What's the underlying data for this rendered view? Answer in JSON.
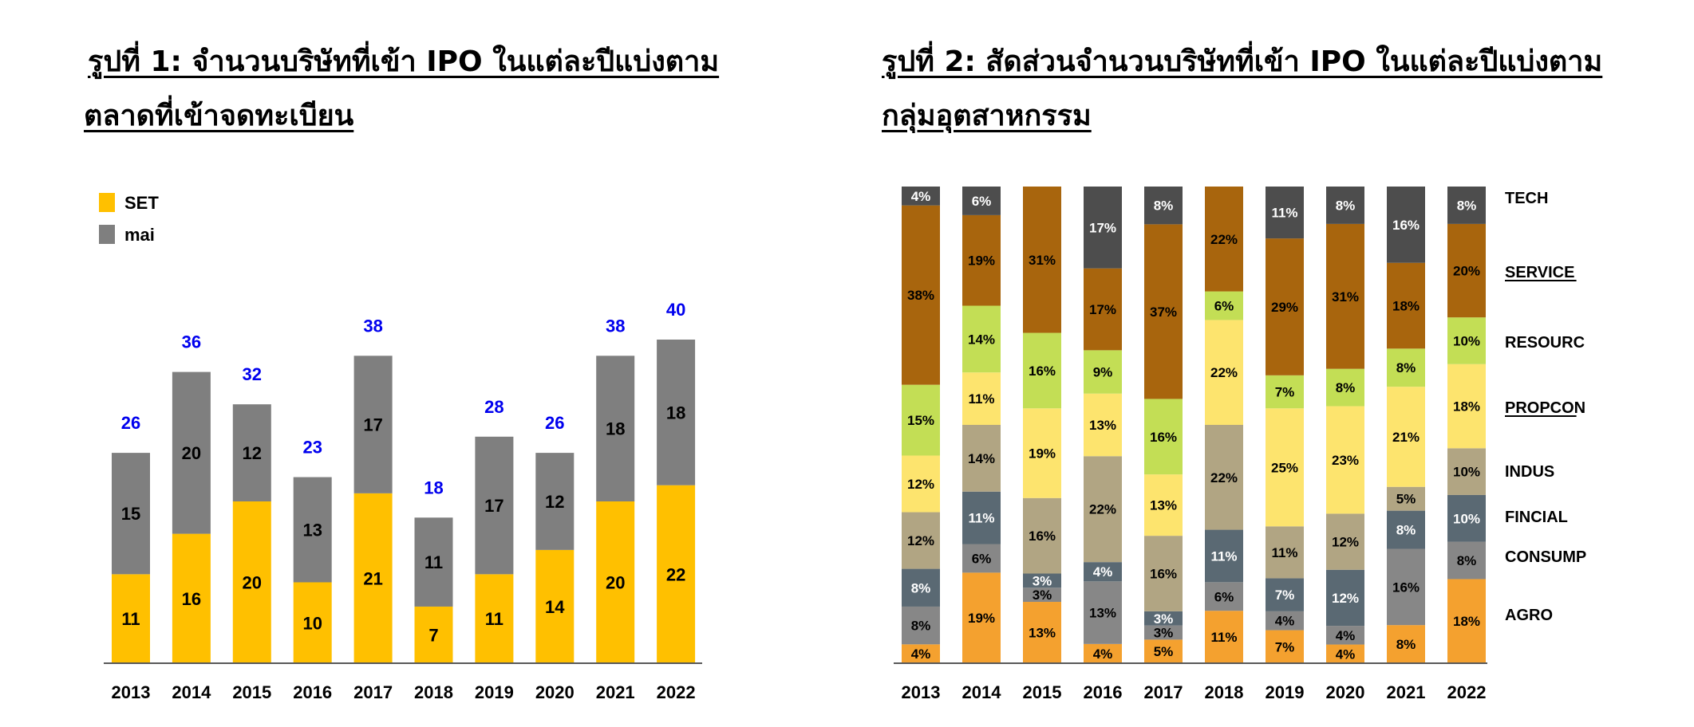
{
  "chart_data": [
    {
      "type": "bar",
      "stacked": true,
      "title_lines": [
        "รูปที่ 1: จำนวนบริษัทที่เข้า IPO ในแต่ละปีแบ่งตาม",
        "ตลาดที่เข้าจดทะเบียน"
      ],
      "categories": [
        "2013",
        "2014",
        "2015",
        "2016",
        "2017",
        "2018",
        "2019",
        "2020",
        "2021",
        "2022"
      ],
      "series": [
        {
          "name": "SET",
          "values": [
            11,
            16,
            20,
            10,
            21,
            7,
            11,
            14,
            20,
            22
          ]
        },
        {
          "name": "mai",
          "values": [
            15,
            20,
            12,
            13,
            17,
            11,
            17,
            12,
            18,
            18
          ]
        }
      ],
      "totals": [
        26,
        36,
        32,
        23,
        38,
        18,
        28,
        26,
        38,
        40
      ],
      "ylim": [
        0,
        45
      ],
      "grid": false,
      "legend_position": "top-left"
    },
    {
      "type": "bar",
      "stacked": true,
      "percent": true,
      "title_lines": [
        "รูปที่ 2: สัดส่วนจำนวนบริษัทที่เข้า IPO ในแต่ละปีแบ่งตาม",
        "กลุ่มอุตสาหกรรม"
      ],
      "categories": [
        "2013",
        "2014",
        "2015",
        "2016",
        "2017",
        "2018",
        "2019",
        "2020",
        "2021",
        "2022"
      ],
      "series": [
        {
          "name": "AGRO",
          "values": [
            4,
            19,
            13,
            4,
            5,
            11,
            7,
            4,
            8,
            18
          ]
        },
        {
          "name": "CONSUMP",
          "values": [
            8,
            6,
            3,
            13,
            3,
            6,
            4,
            4,
            16,
            8
          ]
        },
        {
          "name": "FINCIAL",
          "values": [
            8,
            11,
            3,
            4,
            3,
            11,
            7,
            12,
            8,
            10
          ]
        },
        {
          "name": "INDUS",
          "values": [
            12,
            14,
            16,
            22,
            16,
            22,
            11,
            12,
            5,
            10
          ]
        },
        {
          "name": "PROPCON",
          "values": [
            12,
            11,
            19,
            13,
            13,
            22,
            25,
            23,
            21,
            18
          ]
        },
        {
          "name": "RESOURC",
          "values": [
            15,
            14,
            16,
            9,
            16,
            6,
            7,
            8,
            8,
            10
          ]
        },
        {
          "name": "SERVICE",
          "values": [
            38,
            19,
            31,
            17,
            37,
            22,
            29,
            31,
            18,
            20
          ]
        },
        {
          "name": "TECH",
          "values": [
            4,
            6,
            0,
            17,
            8,
            0,
            11,
            8,
            16,
            8
          ]
        }
      ],
      "ylim": [
        0,
        100
      ],
      "grid": false,
      "legend_position": "right"
    }
  ],
  "colors": {
    "SET": "#ffc000",
    "mai": "#7f7f7f",
    "total_label": "#0000ee",
    "AGRO": "#f4a12f",
    "CONSUMP": "#878787",
    "FINCIAL": "#5a6973",
    "INDUS": "#b1a583",
    "PROPCON": "#fde46e",
    "RESOURC": "#c3de55",
    "SERVICE": "#a8650d",
    "TECH": "#4d4d4d"
  }
}
